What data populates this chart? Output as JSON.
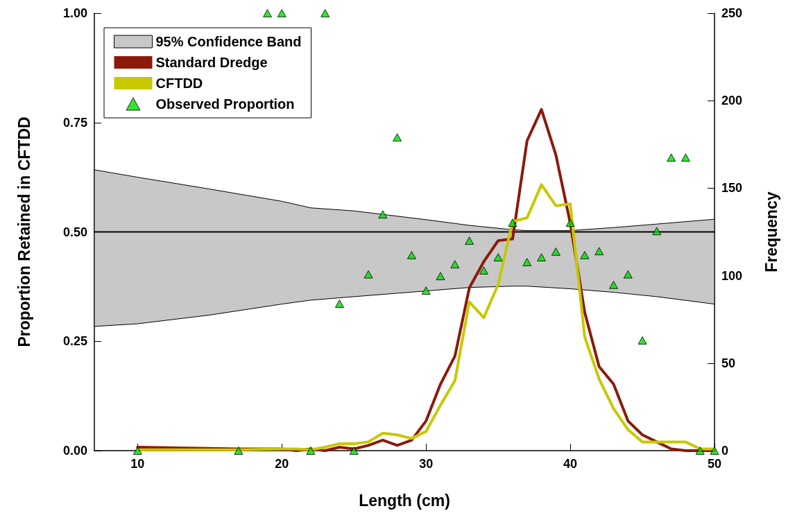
{
  "chart_data": {
    "type": "line",
    "xlabel": "Length (cm)",
    "ylabel": "Proportion Retained in CFTDD",
    "y2label": "Frequency",
    "xlim": [
      7,
      50
    ],
    "xticks": [
      10,
      20,
      30,
      40,
      50
    ],
    "ylim": [
      0,
      1
    ],
    "yticks": [
      {
        "value": 0,
        "label": "0.00"
      },
      {
        "value": 0.25,
        "label": "0.25"
      },
      {
        "value": 0.5,
        "label": "0.50"
      },
      {
        "value": 0.75,
        "label": "0.75"
      },
      {
        "value": 1,
        "label": "1.00"
      }
    ],
    "y2lim": [
      0,
      250
    ],
    "y2ticks": [
      0,
      50,
      100,
      150,
      200,
      250
    ],
    "grid": false,
    "legend": "top left",
    "marker": "none",
    "line_style": "solid",
    "series": [
      {
        "name": "95% Confidence Band",
        "axis": "y",
        "color": "#000000",
        "x": [
          7,
          10,
          15,
          20,
          22,
          25,
          30,
          33,
          36,
          37,
          40,
          43,
          46,
          50
        ],
        "values": [
          0.5,
          0.5,
          0.5,
          0.5,
          0.5,
          0.5,
          0.5,
          0.5,
          0.5,
          0.5,
          0.5,
          0.5,
          0.5,
          0.5
        ],
        "lower": [
          0.284,
          0.29,
          0.31,
          0.335,
          0.344,
          0.352,
          0.365,
          0.373,
          0.376,
          0.376,
          0.37,
          0.362,
          0.352,
          0.335
        ],
        "upper": [
          0.642,
          0.625,
          0.598,
          0.57,
          0.555,
          0.548,
          0.528,
          0.515,
          0.505,
          0.503,
          0.503,
          0.51,
          0.518,
          0.529
        ]
      },
      {
        "name": "Standard Dredge",
        "axis": "y2",
        "color": "#8b1a0a",
        "x": [
          10,
          17,
          20,
          21,
          22,
          23,
          24,
          25,
          26,
          27,
          28,
          29,
          30,
          31,
          32,
          33,
          34,
          35,
          36,
          37,
          38,
          39,
          40,
          41,
          42,
          43,
          44,
          45,
          46,
          47,
          48,
          49,
          50
        ],
        "values": [
          2,
          1,
          1,
          0,
          1,
          0,
          2,
          1,
          3,
          6,
          3,
          6,
          17,
          38,
          54,
          93,
          108,
          120,
          121,
          177,
          195,
          169,
          130,
          79,
          48,
          38,
          17,
          9,
          5,
          1,
          0,
          0,
          0
        ]
      },
      {
        "name": "CFTDD",
        "axis": "y2",
        "color": "#c8c800",
        "x": [
          10,
          17,
          20,
          21,
          22,
          23,
          24,
          25,
          26,
          27,
          28,
          29,
          30,
          31,
          32,
          33,
          34,
          35,
          36,
          37,
          38,
          39,
          40,
          41,
          42,
          43,
          44,
          45,
          46,
          47,
          48,
          49,
          50
        ],
        "values": [
          0.5,
          0.5,
          1,
          1,
          0.5,
          2,
          4,
          4,
          5,
          10,
          9,
          7,
          11,
          26,
          40,
          85,
          76,
          95,
          131,
          133,
          152,
          140,
          141,
          65,
          41,
          24,
          12,
          5,
          5,
          5,
          5,
          1,
          1
        ]
      },
      {
        "name": "Observed Proportion",
        "type": "scatter",
        "axis": "y",
        "marker": "triangle",
        "color": "#00dd00",
        "x": [
          10,
          17,
          19,
          20,
          22,
          23,
          24,
          25,
          26,
          27,
          28,
          29,
          30,
          31,
          32,
          33,
          34,
          35,
          36,
          37,
          38,
          39,
          40,
          41,
          42,
          43,
          44,
          45,
          46,
          47,
          48,
          49,
          50
        ],
        "values": [
          0,
          0,
          1,
          1,
          0,
          1,
          0.336,
          0,
          0.403,
          0.54,
          0.716,
          0.447,
          0.366,
          0.399,
          0.426,
          0.48,
          0.412,
          0.442,
          0.521,
          0.431,
          0.442,
          0.455,
          0.521,
          0.447,
          0.456,
          0.379,
          0.403,
          0.252,
          0.502,
          0.67,
          0.67,
          0,
          0
        ]
      }
    ]
  }
}
